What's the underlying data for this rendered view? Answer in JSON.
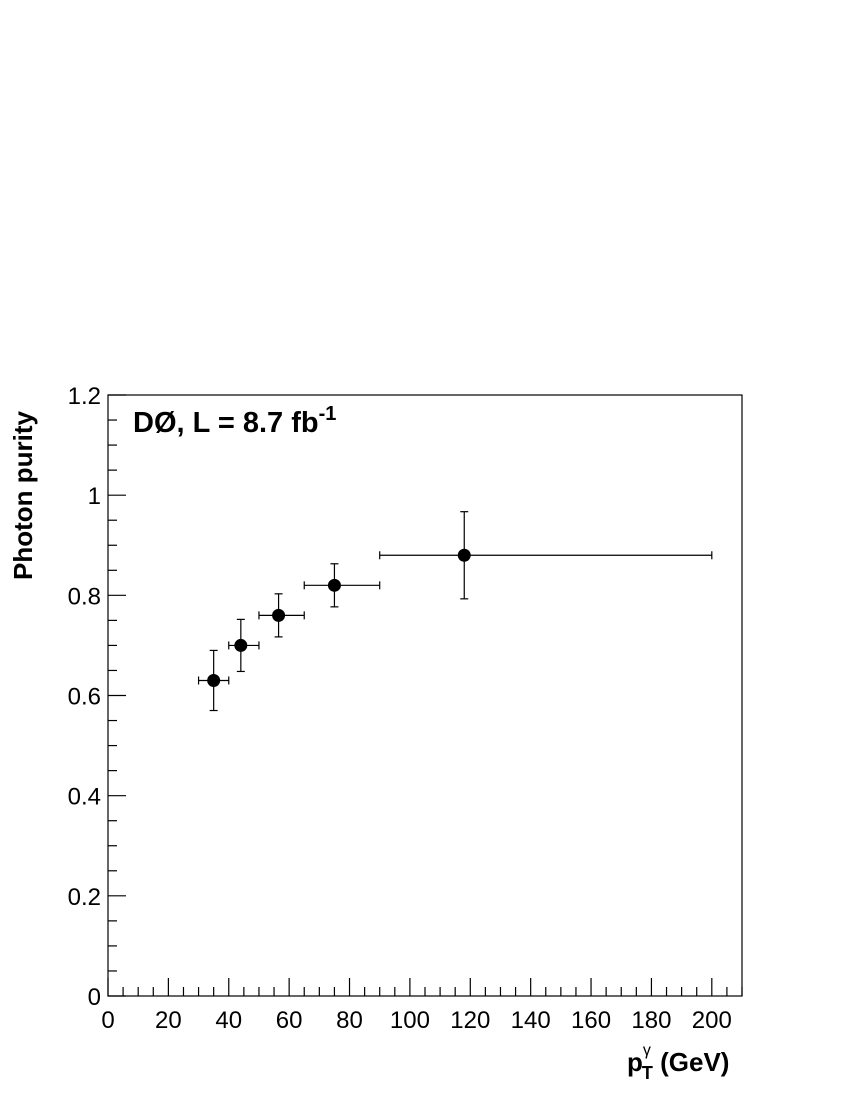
{
  "chart_data": {
    "type": "scatter",
    "xlabel": {
      "main": "p",
      "sub": "T",
      "sup": "γ",
      "rest": " (GeV)"
    },
    "ylabel": "Photon purity",
    "annotation": {
      "main": "DØ, L = 8.7 fb",
      "sup": "-1"
    },
    "xlim": [
      0,
      210
    ],
    "ylim": [
      0,
      1.2
    ],
    "x_ticks": [
      0,
      20,
      40,
      60,
      80,
      100,
      120,
      140,
      160,
      180,
      200
    ],
    "x_tick_labels": [
      "0",
      "20",
      "40",
      "60",
      "80",
      "100",
      "120",
      "140",
      "160",
      "180",
      "200"
    ],
    "y_ticks": [
      0,
      0.2,
      0.4,
      0.6,
      0.8,
      1,
      1.2
    ],
    "y_tick_labels": [
      "0",
      "0.2",
      "0.4",
      "0.6",
      "0.8",
      "1",
      "1.2"
    ],
    "grid": false,
    "points": [
      {
        "x": 35,
        "y": 0.63,
        "x_low": 30,
        "x_high": 40,
        "y_err_low": 0.06,
        "y_err_high": 0.06
      },
      {
        "x": 44,
        "y": 0.7,
        "x_low": 40,
        "x_high": 50,
        "y_err_low": 0.052,
        "y_err_high": 0.052
      },
      {
        "x": 56.5,
        "y": 0.76,
        "x_low": 50,
        "x_high": 65,
        "y_err_low": 0.043,
        "y_err_high": 0.043
      },
      {
        "x": 75,
        "y": 0.82,
        "x_low": 65,
        "x_high": 90,
        "y_err_low": 0.043,
        "y_err_high": 0.043
      },
      {
        "x": 118,
        "y": 0.88,
        "x_low": 90,
        "x_high": 200,
        "y_err_low": 0.087,
        "y_err_high": 0.087
      }
    ]
  }
}
